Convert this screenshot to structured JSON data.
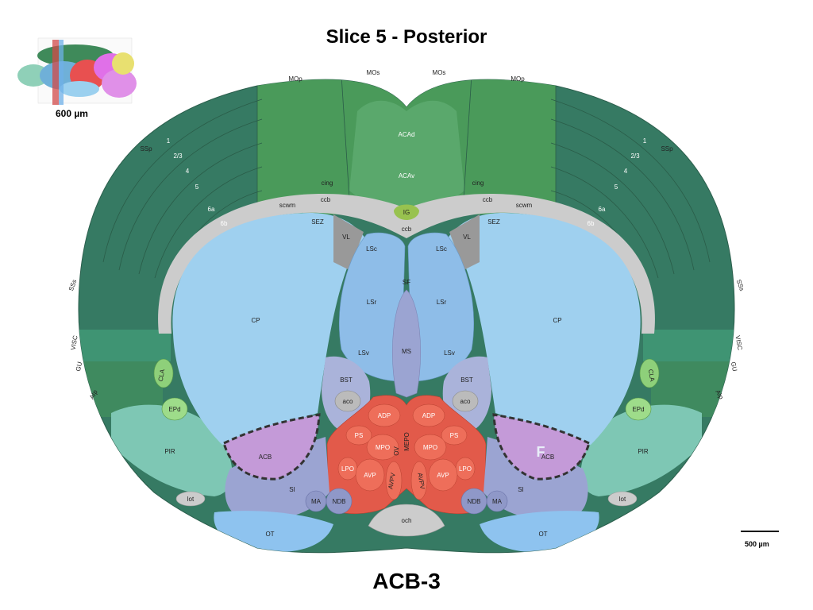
{
  "title": "Slice 5 - Posterior",
  "caption": "ACB-3",
  "thumbnail_scale": "600 µm",
  "scale_bar_label": "500 µm",
  "marker_letter": "F",
  "colors": {
    "isocortex_dark": "#367a63",
    "isocortex_light": "#4a9a5a",
    "acc": "#5aa86c",
    "striatum": "#9fd0ef",
    "lateral_septum": "#8ebde8",
    "pallidum": "#9ba4d2",
    "hypothalamus": "#e25a4a",
    "fiber_tracts": "#cccccc",
    "olfactory": "#7ec7b4",
    "acb_highlight": "#c49ad8",
    "ig": "#98c24f"
  },
  "labels": {
    "mop_l": "MOp",
    "mos_l": "MOs",
    "mos_r": "MOs",
    "mop_r": "MOp",
    "ssp_l": "SSp",
    "ssp_r": "SSp",
    "layer1_l": "1",
    "layer23_l": "2/3",
    "layer4_l": "4",
    "layer5_l": "5",
    "layer6a_l": "6a",
    "layer6b_l": "6b",
    "layer1_r": "1",
    "layer23_r": "2/3",
    "layer4_r": "4",
    "layer5_r": "5",
    "layer6a_r": "6a",
    "layer6b_r": "6b",
    "acad": "ACAd",
    "acav": "ACAv",
    "cing_l": "cing",
    "cing_r": "cing",
    "ccb_l": "ccb",
    "ccb_r": "ccb",
    "ccb_c": "ccb",
    "scwm_l": "scwm",
    "scwm_r": "scwm",
    "ig": "IG",
    "sez_l": "SEZ",
    "sez_r": "SEZ",
    "vl_l": "VL",
    "vl_r": "VL",
    "lsc_l": "LSc",
    "lsc_r": "LSc",
    "sf": "SF",
    "lsr_l": "LSr",
    "lsr_r": "LSr",
    "lsv_l": "LSv",
    "lsv_r": "LSv",
    "ms": "MS",
    "cp_l": "CP",
    "cp_r": "CP",
    "sss_l": "SSs",
    "sss_r": "SSs",
    "visc_l": "VISC",
    "visc_r": "VISC",
    "gu_l": "GU",
    "gu_r": "GU",
    "aip_l": "AIp",
    "aip_r": "AIp",
    "cla_l": "CLA",
    "cla_r": "CLA",
    "epd_l": "EPd",
    "epd_r": "EPd",
    "pir_l": "PIR",
    "pir_r": "PIR",
    "acb_l": "ACB",
    "acb_r": "ACB",
    "bst_l": "BST",
    "bst_r": "BST",
    "aco_l": "aco",
    "aco_r": "aco",
    "adp_l": "ADP",
    "adp_r": "ADP",
    "ps_l": "PS",
    "ps_r": "PS",
    "mpo_l": "MPO",
    "mpo_r": "MPO",
    "ov": "OV",
    "mepo": "MEPO",
    "lpo_l": "LPO",
    "lpo_r": "LPO",
    "avp_l": "AVP",
    "avp_r": "AVP",
    "avpv_l": "AVPV",
    "avpv_r": "AVPV",
    "si_l": "SI",
    "si_r": "SI",
    "ma_l": "MA",
    "ma_r": "MA",
    "ndb_l": "NDB",
    "ndb_r": "NDB",
    "lot_l": "lot",
    "lot_r": "lot",
    "ot_l": "OT",
    "ot_r": "OT",
    "och": "och"
  }
}
